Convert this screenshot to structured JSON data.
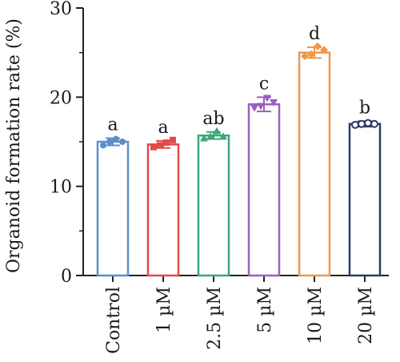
{
  "chart_data": {
    "type": "bar",
    "categories": [
      "Control",
      "1 µM",
      "2.5 µM",
      "5 µM",
      "10 µM",
      "20 µM"
    ],
    "values": [
      15.0,
      14.7,
      15.7,
      19.2,
      25.0,
      17.0
    ],
    "errors": [
      0.4,
      0.4,
      0.4,
      0.8,
      0.6,
      0.3
    ],
    "points": [
      [
        14.6,
        15.0,
        15.3,
        15.0
      ],
      [
        14.4,
        14.6,
        14.9,
        15.2
      ],
      [
        15.4,
        15.6,
        16.2,
        15.6
      ],
      [
        18.8,
        19.0,
        19.9,
        19.4
      ],
      [
        24.6,
        24.8,
        25.7,
        25.3
      ],
      [
        16.9,
        17.0,
        17.1,
        17.0
      ]
    ],
    "point_markers": [
      "circle",
      "square",
      "triangle",
      "inverted-triangle",
      "diamond",
      "open-circle"
    ],
    "significance_labels": [
      "a",
      "a",
      "ab",
      "c",
      "d",
      "b"
    ],
    "colors": [
      "#5a8fc9",
      "#e04a4a",
      "#3aa877",
      "#9a5fc0",
      "#f0974a",
      "#2c3a66"
    ],
    "xlabel": "",
    "ylabel": "Organoid formation rate (%)",
    "ylim": [
      0,
      30
    ],
    "yticks": [
      0,
      10,
      20,
      30
    ],
    "grid": false,
    "legend": "none"
  }
}
